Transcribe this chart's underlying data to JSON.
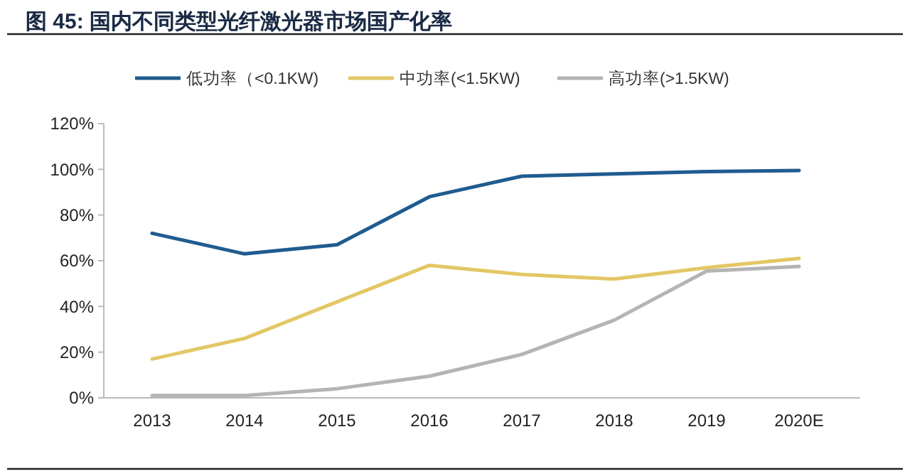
{
  "chart_data": {
    "type": "line",
    "title": "图 45:  国内不同类型光纤激光器市场国产化率",
    "categories": [
      "2013",
      "2014",
      "2015",
      "2016",
      "2017",
      "2018",
      "2019",
      "2020E"
    ],
    "series": [
      {
        "name": "低功率（<0.1KW)",
        "color": "#1f5c8f",
        "values": [
          72,
          63,
          67,
          88,
          97,
          98,
          99,
          99.5
        ]
      },
      {
        "name": "中功率(<1.5KW)",
        "color": "#e3c765",
        "values": [
          17,
          26,
          42,
          58,
          54,
          52,
          57,
          61
        ]
      },
      {
        "name": "高功率(>1.5KW)",
        "color": "#b4b4b4",
        "values": [
          1,
          1,
          4,
          9.5,
          19,
          34,
          55.5,
          57.5
        ]
      }
    ],
    "ylim": [
      0,
      120
    ],
    "yticks": [
      {
        "value": 0,
        "label": "0%"
      },
      {
        "value": 20,
        "label": "20%"
      },
      {
        "value": 40,
        "label": "40%"
      },
      {
        "value": 60,
        "label": "60%"
      },
      {
        "value": 80,
        "label": "80%"
      },
      {
        "value": 100,
        "label": "100%"
      },
      {
        "value": 120,
        "label": "120%"
      }
    ],
    "grid": false,
    "legend": "top",
    "marker": "none",
    "line_style": "solid"
  }
}
